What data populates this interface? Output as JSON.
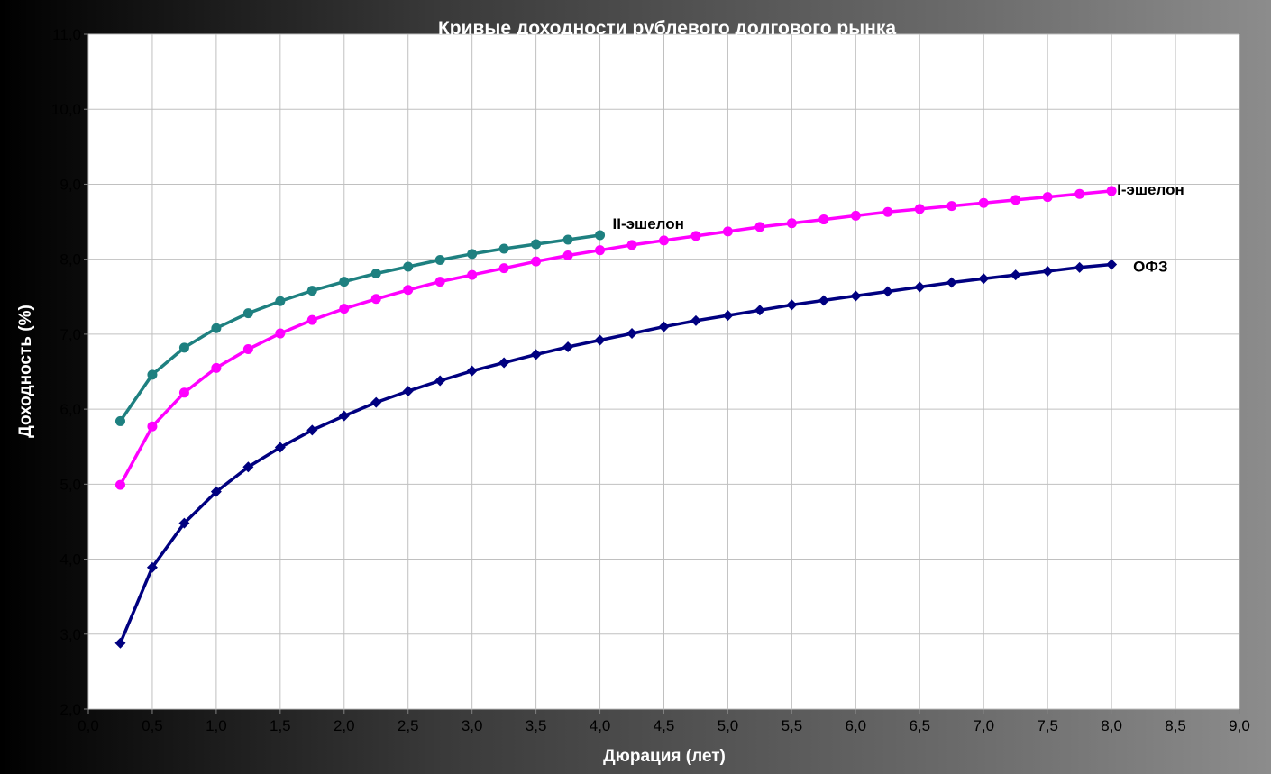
{
  "chart_data": {
    "type": "line",
    "title": "Кривые доходности рублевого долгового рынка",
    "xlabel": "Дюрация (лет)",
    "ylabel": "Доходность (%)",
    "xlim": [
      0,
      9
    ],
    "ylim": [
      2,
      11
    ],
    "x_ticks": [
      "0,0",
      "0,5",
      "1,0",
      "1,5",
      "2,0",
      "2,5",
      "3,0",
      "3,5",
      "4,0",
      "4,5",
      "5,0",
      "5,5",
      "6,0",
      "6,5",
      "7,0",
      "7,5",
      "8,0",
      "8,5",
      "9,0"
    ],
    "y_ticks": [
      "2,0",
      "3,0",
      "4,0",
      "5,0",
      "6,0",
      "7,0",
      "8,0",
      "9,0",
      "10,0",
      "11,0"
    ],
    "grid": true,
    "legend": "inline labels at line ends",
    "series": [
      {
        "name": "II-эшелон",
        "color": "#1e8080",
        "marker": "circle",
        "x": [
          0.25,
          0.5,
          0.75,
          1.0,
          1.25,
          1.5,
          1.75,
          2.0,
          2.25,
          2.5,
          2.75,
          3.0,
          3.25,
          3.5,
          3.75,
          4.0
        ],
        "y": [
          5.84,
          6.46,
          6.82,
          7.08,
          7.28,
          7.44,
          7.58,
          7.7,
          7.81,
          7.9,
          7.99,
          8.07,
          8.14,
          8.2,
          8.26,
          8.32
        ]
      },
      {
        "name": "I-эшелон",
        "color": "#ff00ff",
        "marker": "circle",
        "x": [
          0.25,
          0.5,
          0.75,
          1.0,
          1.25,
          1.5,
          1.75,
          2.0,
          2.25,
          2.5,
          2.75,
          3.0,
          3.25,
          3.5,
          3.75,
          4.0,
          4.25,
          4.5,
          4.75,
          5.0,
          5.25,
          5.5,
          5.75,
          6.0,
          6.25,
          6.5,
          6.75,
          7.0,
          7.25,
          7.5,
          7.75,
          8.0
        ],
        "y": [
          4.99,
          5.77,
          6.22,
          6.55,
          6.8,
          7.01,
          7.19,
          7.34,
          7.47,
          7.59,
          7.7,
          7.79,
          7.88,
          7.97,
          8.05,
          8.12,
          8.19,
          8.25,
          8.31,
          8.37,
          8.43,
          8.48,
          8.53,
          8.58,
          8.63,
          8.67,
          8.71,
          8.75,
          8.79,
          8.83,
          8.87,
          8.91
        ]
      },
      {
        "name": "ОФЗ",
        "color": "#000080",
        "marker": "diamond",
        "x": [
          0.25,
          0.5,
          0.75,
          1.0,
          1.25,
          1.5,
          1.75,
          2.0,
          2.25,
          2.5,
          2.75,
          3.0,
          3.25,
          3.5,
          3.75,
          4.0,
          4.25,
          4.5,
          4.75,
          5.0,
          5.25,
          5.5,
          5.75,
          6.0,
          6.25,
          6.5,
          6.75,
          7.0,
          7.25,
          7.5,
          7.75,
          8.0
        ],
        "y": [
          2.88,
          3.89,
          4.48,
          4.9,
          5.23,
          5.49,
          5.72,
          5.91,
          6.09,
          6.24,
          6.38,
          6.51,
          6.62,
          6.73,
          6.83,
          6.92,
          7.01,
          7.1,
          7.18,
          7.25,
          7.32,
          7.39,
          7.45,
          7.51,
          7.57,
          7.63,
          7.69,
          7.74,
          7.79,
          7.84,
          7.89,
          7.93
        ]
      }
    ]
  }
}
